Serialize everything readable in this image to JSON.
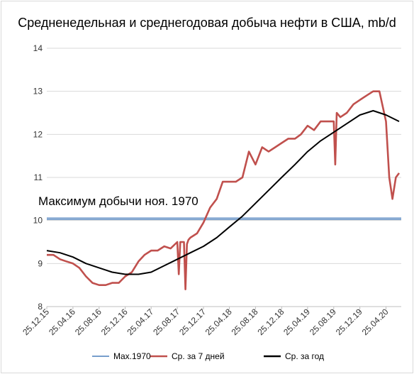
{
  "chart_data": {
    "type": "line",
    "title": "Средненедельная и среднегодовая добыча нефти в США, mb/d",
    "ylim": [
      8,
      14
    ],
    "y_ticks": [
      "8",
      "9",
      "10",
      "11",
      "12",
      "13",
      "14"
    ],
    "x_ticks": [
      "25.12.15",
      "25.04.16",
      "25.08.16",
      "25.12.16",
      "25.04.17",
      "25.08.17",
      "25.12.17",
      "25.04.18",
      "25.08.18",
      "25.12.18",
      "25.04.19",
      "25.08.19",
      "25.12.19",
      "25.04.20"
    ],
    "grid": "horizontal",
    "annotation": "Максимум добычи ноя. 1970",
    "legend_position": "bottom",
    "series": [
      {
        "name": "Max.1970",
        "color": "#4a7ebb",
        "x": [
          "25.12.15",
          "25.04.20"
        ],
        "values": [
          10.04,
          10.04
        ]
      },
      {
        "name": "Ср. за 7 дней",
        "color": "#c0504d",
        "x": [
          "25.12.15",
          "25.01.16",
          "25.02.16",
          "25.03.16",
          "25.04.16",
          "25.05.16",
          "25.06.16",
          "25.07.16",
          "25.08.16",
          "25.09.16",
          "25.10.16",
          "25.11.16",
          "25.12.16",
          "25.01.17",
          "25.02.17",
          "25.03.17",
          "25.04.17",
          "25.05.17",
          "25.06.17",
          "25.07.17",
          "25.08.17",
          "01.09.17",
          "08.09.17",
          "25.09.17",
          "02.10.17",
          "09.10.17",
          "16.10.17",
          "25.10.17",
          "25.11.17",
          "25.12.17",
          "25.01.18",
          "25.02.18",
          "25.03.18",
          "25.04.18",
          "25.05.18",
          "25.06.18",
          "25.07.18",
          "25.08.18",
          "25.09.18",
          "25.10.18",
          "25.11.18",
          "25.12.18",
          "25.01.19",
          "25.02.19",
          "25.03.19",
          "25.04.19",
          "25.05.19",
          "25.06.19",
          "25.07.19",
          "25.08.19",
          "01.09.19",
          "08.09.19",
          "25.09.19",
          "25.10.19",
          "25.11.19",
          "25.12.19",
          "25.01.20",
          "25.02.20",
          "25.03.20",
          "25.04.20",
          "10.05.20",
          "25.05.20",
          "10.06.20",
          "25.06.20"
        ],
        "values": [
          9.2,
          9.2,
          9.1,
          9.05,
          9.0,
          8.9,
          8.7,
          8.55,
          8.5,
          8.5,
          8.55,
          8.55,
          8.7,
          8.8,
          9.05,
          9.2,
          9.3,
          9.3,
          9.4,
          9.35,
          9.5,
          8.75,
          9.5,
          9.5,
          8.4,
          9.45,
          9.55,
          9.6,
          9.7,
          9.95,
          10.3,
          10.5,
          10.9,
          10.9,
          10.9,
          11.0,
          11.6,
          11.3,
          11.7,
          11.6,
          11.7,
          11.8,
          11.9,
          11.9,
          12.0,
          12.2,
          12.1,
          12.3,
          12.3,
          12.3,
          11.3,
          12.5,
          12.4,
          12.5,
          12.7,
          12.8,
          12.9,
          13.0,
          13.0,
          12.3,
          11.0,
          10.5,
          11.0,
          11.1
        ]
      },
      {
        "name": "Ср. за год",
        "color": "#000000",
        "x": [
          "25.12.15",
          "25.02.16",
          "25.04.16",
          "25.06.16",
          "25.08.16",
          "25.10.16",
          "25.12.16",
          "25.02.17",
          "25.04.17",
          "25.06.17",
          "25.08.17",
          "25.10.17",
          "25.12.17",
          "25.02.18",
          "25.04.18",
          "25.06.18",
          "25.08.18",
          "25.10.18",
          "25.12.18",
          "25.02.19",
          "25.04.19",
          "25.06.19",
          "25.08.19",
          "25.10.19",
          "25.12.19",
          "25.02.20",
          "25.04.20",
          "25.06.20"
        ],
        "values": [
          9.3,
          9.25,
          9.15,
          9.0,
          8.9,
          8.8,
          8.75,
          8.75,
          8.8,
          8.95,
          9.1,
          9.25,
          9.4,
          9.6,
          9.85,
          10.1,
          10.4,
          10.7,
          11.0,
          11.3,
          11.6,
          11.85,
          12.05,
          12.25,
          12.45,
          12.55,
          12.45,
          12.3
        ]
      }
    ]
  }
}
